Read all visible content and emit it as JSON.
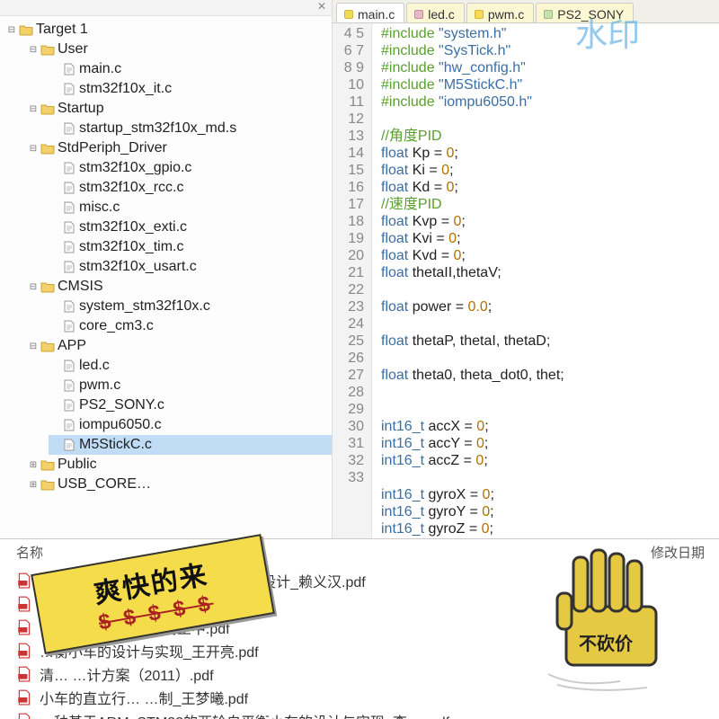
{
  "watermark": "水印",
  "tree": {
    "root": "Target 1",
    "groups": [
      {
        "name": "User",
        "files": [
          "main.c",
          "stm32f10x_it.c"
        ]
      },
      {
        "name": "Startup",
        "files": [
          "startup_stm32f10x_md.s"
        ]
      },
      {
        "name": "StdPeriph_Driver",
        "files": [
          "stm32f10x_gpio.c",
          "stm32f10x_rcc.c",
          "misc.c",
          "stm32f10x_exti.c",
          "stm32f10x_tim.c",
          "stm32f10x_usart.c"
        ]
      },
      {
        "name": "CMSIS",
        "files": [
          "system_stm32f10x.c",
          "core_cm3.c"
        ]
      },
      {
        "name": "APP",
        "files": [
          "led.c",
          "pwm.c",
          "PS2_SONY.c",
          "iompu6050.c",
          "M5StickC.c"
        ],
        "selected": 4
      },
      {
        "name": "Public",
        "collapsed": true,
        "files": []
      },
      {
        "name": "USB_CORE",
        "collapsed": true,
        "files": [],
        "cut": true
      }
    ]
  },
  "tabs": [
    "main.c",
    "led.c",
    "pwm.c",
    "PS2_SONY"
  ],
  "activeTab": 0,
  "code": {
    "start": 4,
    "lines": [
      {
        "t": "pp",
        "a": "#include ",
        "s": "\"system.h\""
      },
      {
        "t": "pp",
        "a": "#include ",
        "s": "\"SysTick.h\""
      },
      {
        "t": "pp",
        "a": "#include ",
        "s": "\"hw_config.h\""
      },
      {
        "t": "pp",
        "a": "#include ",
        "s": "\"M5StickC.h\""
      },
      {
        "t": "pp",
        "a": "#include ",
        "s": "\"iompu6050.h\""
      },
      {
        "t": "blank"
      },
      {
        "t": "cmt",
        "a": "//角度PID"
      },
      {
        "t": "decl",
        "ty": "float",
        "id": "Kp",
        "v": "0"
      },
      {
        "t": "decl",
        "ty": "float",
        "id": "Ki",
        "v": "0"
      },
      {
        "t": "decl",
        "ty": "float",
        "id": "Kd",
        "v": "0"
      },
      {
        "t": "cmt",
        "a": "//速度PID"
      },
      {
        "t": "decl",
        "ty": "float",
        "id": "Kvp",
        "v": "0"
      },
      {
        "t": "decl",
        "ty": "float",
        "id": "Kvi",
        "v": "0"
      },
      {
        "t": "decl",
        "ty": "float",
        "id": "Kvd",
        "v": "0"
      },
      {
        "t": "decl2",
        "ty": "float",
        "ids": "thetaII,thetaV"
      },
      {
        "t": "blank"
      },
      {
        "t": "decl",
        "ty": "float",
        "id": "power",
        "v": "0.0"
      },
      {
        "t": "blank"
      },
      {
        "t": "decl2",
        "ty": "float",
        "ids": "thetaP, thetaI, thetaD"
      },
      {
        "t": "blank"
      },
      {
        "t": "decl2",
        "ty": "float",
        "ids": "theta0, theta_dot0, thet"
      },
      {
        "t": "blank"
      },
      {
        "t": "blank"
      },
      {
        "t": "decl",
        "ty": "int16_t",
        "id": "accX",
        "v": "0"
      },
      {
        "t": "decl",
        "ty": "int16_t",
        "id": "accY",
        "v": "0"
      },
      {
        "t": "decl",
        "ty": "int16_t",
        "id": "accZ",
        "v": "0"
      },
      {
        "t": "blank"
      },
      {
        "t": "decl",
        "ty": "int16_t",
        "id": "gyroX",
        "v": "0"
      },
      {
        "t": "decl",
        "ty": "int16_t",
        "id": "gyroY",
        "v": "0"
      },
      {
        "t": "decl",
        "ty": "int16_t",
        "id": "gyroZ",
        "v": "0"
      }
    ]
  },
  "explorer": {
    "col_name": "名称",
    "col_date": "修改日期",
    "files": [
      "…MPU6050的双轮平衡车控制系统设计_赖义汉.pdf",
      "…平衡车系统的设计_王晶.pdf",
      "…车控制系统设计_高正中.pdf",
      "…衡小车的设计与实现_王开亮.pdf",
      "清…                …计方案（2011）.pdf",
      "小车的直立行…       …制_王梦曦.pdf",
      "一种基于ARM_STM32的两轮自平衡小车的设计与实现_李…  .pdf"
    ]
  },
  "sticker": {
    "line1": "爽快的来",
    "line2": "$ $ $ $ $"
  },
  "hand_label": "不砍价"
}
